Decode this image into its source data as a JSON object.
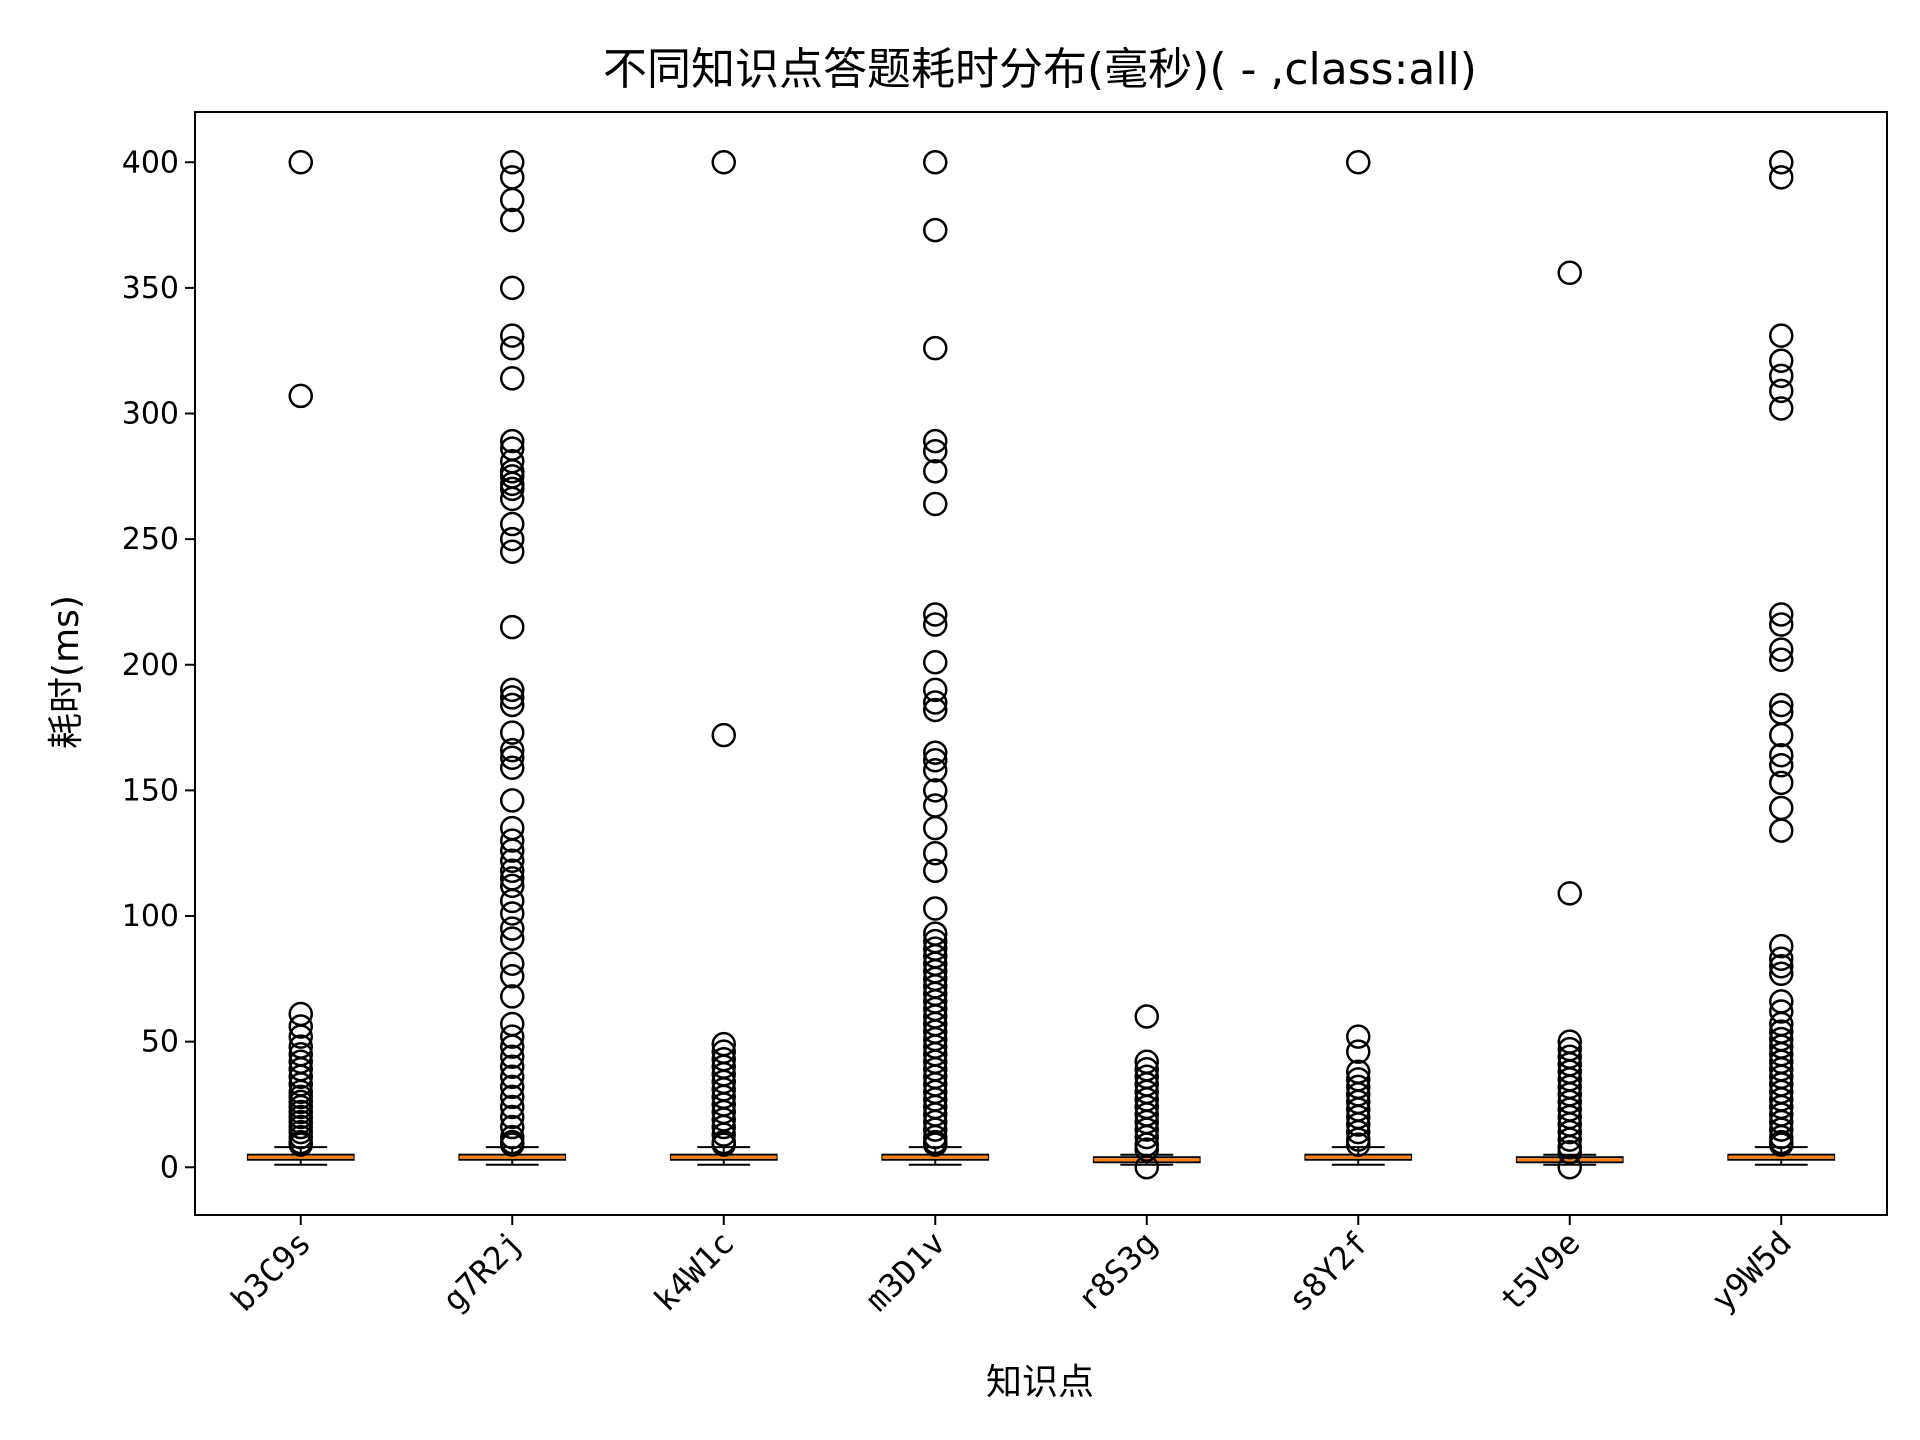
{
  "chart_data": {
    "type": "box",
    "title": "不同知识点答题耗时分布(毫秒)( - ,class:all)",
    "xlabel": "知识点",
    "ylabel": "耗时(ms)",
    "ylim": [
      -19,
      420
    ],
    "yticks": [
      0,
      50,
      100,
      150,
      200,
      250,
      300,
      350,
      400
    ],
    "grid": false,
    "colors": {
      "median": "#ff7f0e",
      "box": "#000000",
      "outlier": "#000000"
    },
    "categories": [
      "b3C9s",
      "g7R2j",
      "k4W1c",
      "m3D1v",
      "r8S3g",
      "s8Y2f",
      "t5V9e",
      "y9W5d"
    ],
    "boxes": [
      {
        "whislo": 1,
        "q1": 3,
        "med": 4,
        "q3": 5,
        "whishi": 8,
        "fliers": [
          400,
          307,
          61,
          56,
          52,
          48,
          45,
          42,
          39,
          36,
          33,
          30,
          28,
          26,
          24,
          22,
          20,
          18,
          16,
          14,
          12,
          10,
          9
        ]
      },
      {
        "whislo": 1,
        "q1": 3,
        "med": 4,
        "q3": 5,
        "whishi": 8,
        "fliers": [
          400,
          394,
          385,
          377,
          350,
          331,
          326,
          314,
          289,
          286,
          281,
          277,
          275,
          272,
          270,
          266,
          256,
          250,
          245,
          215,
          190,
          187,
          184,
          173,
          166,
          163,
          159,
          146,
          135,
          130,
          126,
          122,
          118,
          115,
          112,
          106,
          101,
          95,
          91,
          81,
          76,
          68,
          57,
          52,
          48,
          44,
          40,
          36,
          32,
          28,
          24,
          20,
          16,
          12,
          10,
          9
        ]
      },
      {
        "whislo": 1,
        "q1": 3,
        "med": 4,
        "q3": 5,
        "whishi": 8,
        "fliers": [
          400,
          172,
          49,
          46,
          43,
          40,
          37,
          34,
          31,
          28,
          25,
          22,
          19,
          16,
          13,
          10,
          9
        ]
      },
      {
        "whislo": 1,
        "q1": 3,
        "med": 4,
        "q3": 5,
        "whishi": 8,
        "fliers": [
          400,
          373,
          326,
          289,
          285,
          277,
          264,
          220,
          216,
          201,
          190,
          185,
          182,
          165,
          162,
          158,
          150,
          144,
          135,
          125,
          118,
          103,
          93,
          90,
          87,
          84,
          81,
          78,
          75,
          72,
          69,
          66,
          63,
          60,
          57,
          54,
          51,
          48,
          45,
          42,
          39,
          36,
          33,
          30,
          27,
          24,
          21,
          18,
          15,
          12,
          10,
          9
        ]
      },
      {
        "whislo": 1,
        "q1": 2,
        "med": 3,
        "q3": 4,
        "whishi": 5,
        "fliers": [
          60,
          42,
          39,
          36,
          33,
          30,
          27,
          24,
          21,
          18,
          15,
          12,
          9,
          7,
          0
        ]
      },
      {
        "whislo": 1,
        "q1": 3,
        "med": 4,
        "q3": 5,
        "whishi": 8,
        "fliers": [
          400,
          52,
          46,
          38,
          35,
          32,
          29,
          26,
          23,
          20,
          17,
          14,
          11,
          9
        ]
      },
      {
        "whislo": 1,
        "q1": 2,
        "med": 3,
        "q3": 4,
        "whishi": 5,
        "fliers": [
          356,
          109,
          50,
          47,
          44,
          41,
          38,
          35,
          32,
          29,
          26,
          23,
          20,
          17,
          14,
          11,
          8,
          6,
          0
        ]
      },
      {
        "whislo": 1,
        "q1": 3,
        "med": 4,
        "q3": 5,
        "whishi": 8,
        "fliers": [
          400,
          394,
          331,
          321,
          315,
          309,
          302,
          220,
          216,
          206,
          202,
          184,
          181,
          172,
          164,
          160,
          153,
          143,
          134,
          88,
          83,
          80,
          77,
          66,
          62,
          57,
          54,
          51,
          48,
          45,
          42,
          39,
          36,
          33,
          30,
          27,
          24,
          21,
          18,
          15,
          12,
          10,
          9
        ]
      }
    ]
  }
}
